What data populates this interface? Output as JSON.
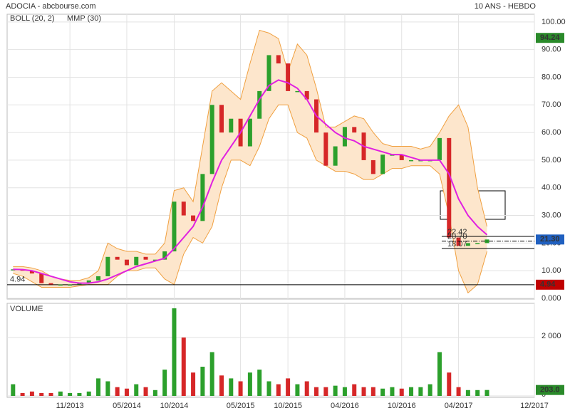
{
  "header": {
    "title": "ADOCIA - abcbourse.com",
    "period": "10 ANS - HEBDO"
  },
  "chart_data": [
    {
      "type": "candle",
      "x": [
        "05/2013",
        "06/2013",
        "07/2013",
        "08/2013",
        "09/2013",
        "10/2013",
        "11/2013",
        "12/2013",
        "01/2014",
        "02/2014",
        "03/2014",
        "04/2014",
        "05/2014",
        "06/2014",
        "07/2014",
        "08/2014",
        "09/2014",
        "10/2014",
        "11/2014",
        "12/2014",
        "01/2015",
        "02/2015",
        "03/2015",
        "04/2015",
        "05/2015",
        "06/2015",
        "07/2015",
        "08/2015",
        "09/2015",
        "10/2015",
        "11/2015",
        "12/2015",
        "01/2016",
        "02/2016",
        "03/2016",
        "04/2016",
        "05/2016",
        "06/2016",
        "07/2016",
        "08/2016",
        "09/2016",
        "10/2016",
        "11/2016",
        "12/2016",
        "01/2017",
        "02/2017",
        "03/2017",
        "04/2017",
        "05/2017",
        "06/2017",
        "07/2017"
      ],
      "close": {
        "up_color": "#2ca02c",
        "down_color": "#d62728",
        "values": [
          10.5,
          10,
          9,
          5.5,
          5,
          5,
          5,
          5.5,
          6.5,
          8,
          15,
          14,
          12,
          15,
          14,
          14,
          17,
          35,
          30,
          28,
          45,
          70,
          60,
          65,
          55,
          65,
          75,
          88,
          85,
          75,
          75,
          72,
          60,
          48,
          55,
          62,
          60,
          50,
          45,
          52,
          52,
          50,
          50,
          50,
          50,
          58,
          22,
          19,
          20,
          20,
          21.3
        ]
      },
      "bands": {
        "name": "BOLL (20, 2)",
        "color": "#f0a040",
        "fill": "#fde6cc",
        "upper": [
          11.5,
          11.5,
          11,
          10,
          8,
          7,
          6.5,
          6.5,
          7.5,
          10,
          20,
          18,
          17,
          17,
          16,
          16,
          20,
          39,
          40,
          35,
          55,
          75,
          78,
          75,
          72,
          85,
          97,
          96,
          94,
          82,
          92,
          88,
          76,
          62,
          62,
          64,
          66,
          65,
          60,
          56,
          55,
          55,
          55,
          54,
          55,
          60,
          66,
          70,
          62,
          40,
          26
        ],
        "lower": [
          9,
          8,
          6,
          4,
          4,
          4,
          4,
          4.5,
          5,
          5,
          5,
          8,
          10,
          10,
          11,
          11,
          7,
          5,
          16,
          22,
          20,
          26,
          40,
          50,
          50,
          48,
          55,
          65,
          70,
          70,
          60,
          58,
          50,
          48,
          46,
          46,
          45,
          43,
          43,
          45,
          47,
          47,
          48,
          48,
          48,
          45,
          30,
          10,
          2,
          5,
          17
        ]
      },
      "mmp": {
        "name": "MMP (30)",
        "color": "#e020e0",
        "values": [
          10.5,
          10.4,
          10,
          9,
          8,
          7,
          6,
          5.5,
          5.5,
          6,
          7,
          8.5,
          10,
          11.5,
          12.5,
          13.5,
          14.5,
          18,
          22,
          26,
          33,
          42,
          50,
          55,
          60,
          66,
          72,
          77,
          79,
          78,
          76,
          72,
          66,
          63,
          60,
          58,
          57,
          55,
          54,
          53,
          52,
          52,
          51,
          50,
          50,
          50,
          45,
          36,
          30,
          26,
          23
        ]
      },
      "xlim": [
        "04/2013",
        "12/2017"
      ],
      "xticks": [
        "11/2013",
        "05/2014",
        "10/2014",
        "05/2015",
        "10/2015",
        "04/2016",
        "10/2016",
        "04/2017",
        "12/2017"
      ],
      "ylim": [
        0,
        102.8
      ],
      "yticks": [
        {
          "value": 100,
          "label": "100.00"
        },
        {
          "value": 90,
          "label": "90.00"
        },
        {
          "value": 80,
          "label": "80.00"
        },
        {
          "value": 70,
          "label": "70.00"
        },
        {
          "value": 60,
          "label": "60.00"
        },
        {
          "value": 50,
          "label": "50.00"
        },
        {
          "value": 40,
          "label": "40.00"
        },
        {
          "value": 30,
          "label": "30.00"
        },
        {
          "value": 20,
          "label": "20.00"
        },
        {
          "value": 10,
          "label": "10.00"
        },
        {
          "value": 0,
          "label": "0.000"
        }
      ],
      "grid": true,
      "levels": [
        {
          "value": 22.42,
          "label": "22.42"
        },
        {
          "value": 20.7,
          "label": "20.70"
        },
        {
          "value": 18.07,
          "label": "18.07"
        }
      ],
      "min_line": 4.94,
      "badges": {
        "high": 94.24,
        "last": {
          "value": 21.3,
          "label": "21.30"
        },
        "low": 4.94
      }
    },
    {
      "type": "bar",
      "title": "VOLUME",
      "values": [
        400,
        100,
        150,
        100,
        100,
        150,
        100,
        100,
        150,
        600,
        500,
        300,
        250,
        400,
        300,
        200,
        900,
        3000,
        2000,
        800,
        1000,
        1500,
        700,
        600,
        500,
        800,
        900,
        500,
        400,
        600,
        400,
        500,
        300,
        300,
        350,
        300,
        400,
        300,
        300,
        250,
        300,
        250,
        300,
        300,
        400,
        1500,
        800,
        300,
        200,
        200,
        203
      ],
      "ylim": [
        0,
        3170
      ],
      "yticks": [
        {
          "value": 2000,
          "label": "2 000"
        },
        0
      ],
      "last": {
        "value": 203,
        "label": "203.0"
      }
    }
  ]
}
